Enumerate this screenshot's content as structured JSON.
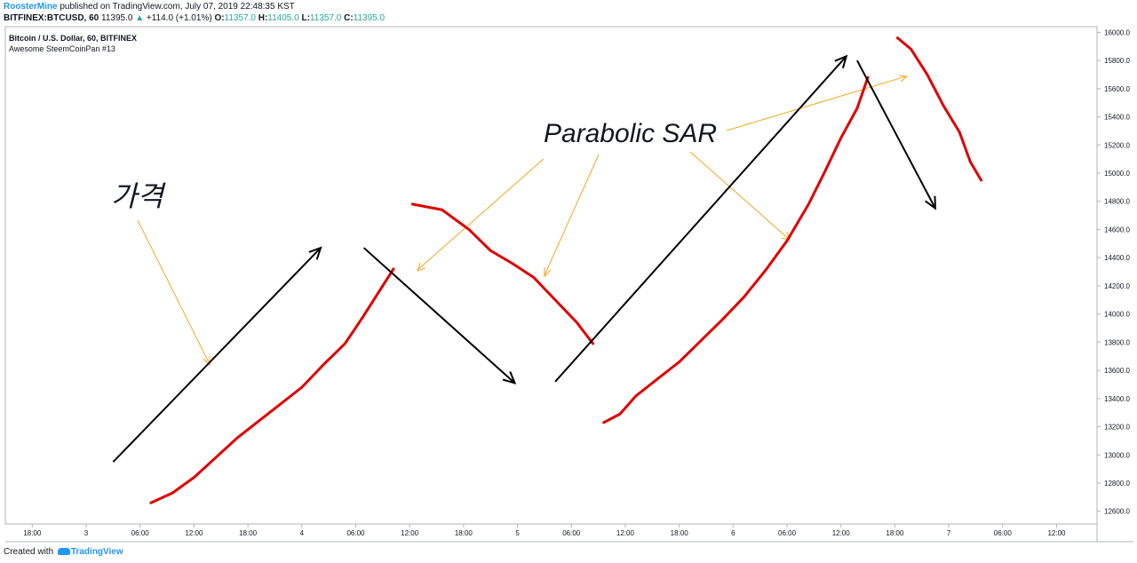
{
  "header": {
    "author": "RoosterMine",
    "published_text": "published on TradingView.com, July 07, 2019 22:48:35 KST",
    "symbol": "BITFINEX:BTCUSD, 60",
    "last": "11395.0",
    "arrow": "▲",
    "change": "+114.0 (+1.01%)",
    "o_label": "O:",
    "o": "11357.0",
    "h_label": "H:",
    "h": "11405.0",
    "l_label": "L:",
    "l": "11357.0",
    "c_label": "C:",
    "c": "11395.0",
    "change_color": "#26a69a"
  },
  "chart_title": "Bitcoin / U.S. Dollar, 60, BITFINEX",
  "chart_subtitle": "Awesome SteemCoinPan #13",
  "annotations": {
    "price_label": "가격",
    "sar_label": "Parabolic SAR"
  },
  "footer": {
    "created_with": "Created with",
    "logo_text": "TradingView"
  },
  "colors": {
    "sar_line": "#e00000",
    "price_arrow": "#000000",
    "pointer": "#f5a623"
  },
  "chart_data": {
    "type": "line",
    "title": "Bitcoin / U.S. Dollar, 60, BITFINEX",
    "xlabel": "",
    "ylabel": "",
    "x_ticks": [
      {
        "t": 1.0,
        "label": "18:00"
      },
      {
        "t": 2.0,
        "label": "3"
      },
      {
        "t": 3.0,
        "label": "06:00"
      },
      {
        "t": 4.0,
        "label": "12:00"
      },
      {
        "t": 5.0,
        "label": "18:00"
      },
      {
        "t": 6.0,
        "label": "4"
      },
      {
        "t": 7.0,
        "label": "06:00"
      },
      {
        "t": 8.0,
        "label": "12:00"
      },
      {
        "t": 9.0,
        "label": "18:00"
      },
      {
        "t": 10.0,
        "label": "5"
      },
      {
        "t": 11.0,
        "label": "06:00"
      },
      {
        "t": 12.0,
        "label": "12:00"
      },
      {
        "t": 13.0,
        "label": "18:00"
      },
      {
        "t": 14.0,
        "label": "6"
      },
      {
        "t": 15.0,
        "label": "06:00"
      },
      {
        "t": 16.0,
        "label": "12:00"
      },
      {
        "t": 17.0,
        "label": "18:00"
      },
      {
        "t": 18.0,
        "label": "7"
      },
      {
        "t": 19.0,
        "label": "06:00"
      },
      {
        "t": 20.0,
        "label": "12:00"
      }
    ],
    "y_ticks": [
      12600,
      12800,
      13000,
      13200,
      13400,
      13600,
      13800,
      14000,
      14200,
      14400,
      14600,
      14800,
      15000,
      15200,
      15400,
      15600,
      15800,
      16000
    ],
    "x_range": [
      0.5,
      20.75
    ],
    "ylim": [
      12510,
      16040
    ],
    "grid": false,
    "series": [
      {
        "kind": "sar",
        "points": [
          [
            3.2,
            12660
          ],
          [
            3.6,
            12730
          ],
          [
            4.0,
            12840
          ],
          [
            4.4,
            12980
          ],
          [
            4.8,
            13120
          ],
          [
            5.2,
            13240
          ],
          [
            5.6,
            13360
          ],
          [
            6.0,
            13480
          ],
          [
            6.4,
            13640
          ],
          [
            6.8,
            13790
          ],
          [
            7.1,
            13960
          ],
          [
            7.4,
            14140
          ],
          [
            7.7,
            14320
          ]
        ]
      },
      {
        "kind": "sar",
        "points": [
          [
            8.05,
            14780
          ],
          [
            8.6,
            14740
          ],
          [
            9.1,
            14600
          ],
          [
            9.5,
            14450
          ],
          [
            9.9,
            14360
          ],
          [
            10.3,
            14260
          ],
          [
            10.7,
            14100
          ],
          [
            11.1,
            13940
          ],
          [
            11.4,
            13790
          ]
        ]
      },
      {
        "kind": "sar",
        "points": [
          [
            11.6,
            13230
          ],
          [
            11.9,
            13290
          ],
          [
            12.2,
            13420
          ],
          [
            12.6,
            13540
          ],
          [
            13.0,
            13660
          ],
          [
            13.4,
            13810
          ],
          [
            13.8,
            13960
          ],
          [
            14.2,
            14120
          ],
          [
            14.6,
            14310
          ],
          [
            15.0,
            14520
          ],
          [
            15.4,
            14780
          ],
          [
            15.7,
            15010
          ],
          [
            16.0,
            15250
          ],
          [
            16.3,
            15460
          ],
          [
            16.5,
            15680
          ]
        ]
      },
      {
        "kind": "sar",
        "points": [
          [
            17.05,
            15960
          ],
          [
            17.3,
            15880
          ],
          [
            17.6,
            15700
          ],
          [
            17.9,
            15480
          ],
          [
            18.2,
            15290
          ],
          [
            18.4,
            15080
          ],
          [
            18.6,
            14950
          ]
        ]
      },
      {
        "kind": "arrow",
        "points": [
          [
            2.5,
            12950
          ],
          [
            6.35,
            14470
          ]
        ]
      },
      {
        "kind": "arrow",
        "points": [
          [
            7.15,
            14470
          ],
          [
            9.95,
            13510
          ]
        ]
      },
      {
        "kind": "arrow",
        "points": [
          [
            10.7,
            13520
          ],
          [
            16.1,
            15830
          ]
        ]
      },
      {
        "kind": "arrow",
        "points": [
          [
            16.3,
            15800
          ],
          [
            17.75,
            14750
          ]
        ]
      }
    ]
  }
}
